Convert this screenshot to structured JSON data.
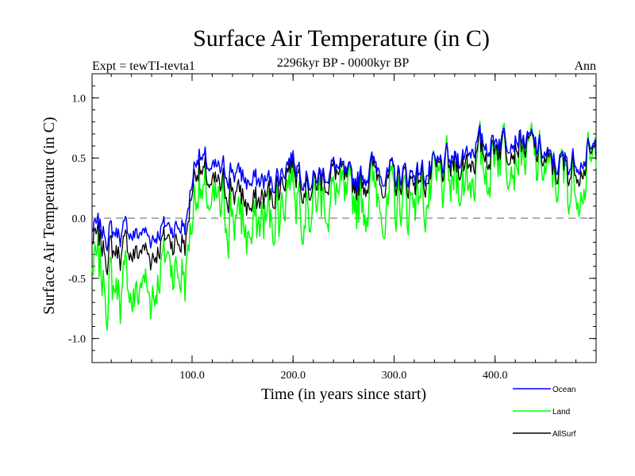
{
  "chart_data": {
    "type": "line",
    "title": "Surface Air Temperature (in C)",
    "subtitle": "2296kyr BP - 0000kyr BP",
    "left_label": "Expt = tewTI-tevta1",
    "right_label": "Ann",
    "xlabel": "Time (in years since start)",
    "ylabel": "Surface Air Temperature (in C)",
    "xlim": [
      1,
      500
    ],
    "ylim": [
      -1.2,
      1.2
    ],
    "x_ticks": [
      100,
      200,
      300,
      400
    ],
    "x_tick_labels": [
      "100.0",
      "200.0",
      "300.0",
      "400.0"
    ],
    "y_ticks": [
      -1.0,
      -0.5,
      0.0,
      0.5,
      1.0
    ],
    "y_tick_labels": [
      "-1.0",
      "-0.5",
      "0.0",
      "0.5",
      "1.0"
    ],
    "reference_line": {
      "y": 0.0,
      "style": "dashed",
      "color": "#808080"
    },
    "legend_position": "bottom-right",
    "series": [
      {
        "name": "Ocean",
        "color": "#0000ff",
        "x": [
          1,
          20,
          40,
          60,
          80,
          95,
          100,
          105,
          120,
          140,
          160,
          180,
          200,
          220,
          240,
          260,
          280,
          300,
          320,
          340,
          360,
          380,
          400,
          420,
          440,
          460,
          480,
          500
        ],
        "values": [
          -0.1,
          -0.1,
          -0.1,
          -0.15,
          -0.05,
          -0.05,
          0.35,
          0.55,
          0.35,
          0.4,
          0.3,
          0.3,
          0.5,
          0.3,
          0.45,
          0.3,
          0.45,
          0.35,
          0.4,
          0.4,
          0.5,
          0.6,
          0.65,
          0.7,
          0.6,
          0.45,
          0.5,
          0.55
        ]
      },
      {
        "name": "Land",
        "color": "#00ff00",
        "x": [
          1,
          20,
          40,
          60,
          80,
          95,
          100,
          105,
          120,
          140,
          160,
          180,
          200,
          220,
          240,
          260,
          280,
          300,
          320,
          340,
          360,
          380,
          400,
          420,
          440,
          460,
          480,
          500
        ],
        "values": [
          -0.45,
          -0.5,
          -0.55,
          -0.6,
          -0.3,
          -0.5,
          0.1,
          0.3,
          -0.05,
          0.05,
          -0.1,
          0.0,
          0.3,
          0.1,
          0.25,
          0.1,
          0.25,
          0.1,
          0.25,
          0.2,
          0.35,
          0.35,
          0.55,
          0.6,
          0.45,
          0.35,
          0.35,
          0.4
        ]
      },
      {
        "name": "AllSurf",
        "color": "#000000",
        "x": [
          1,
          20,
          40,
          60,
          80,
          95,
          100,
          105,
          120,
          140,
          160,
          180,
          200,
          220,
          240,
          260,
          280,
          300,
          320,
          340,
          360,
          380,
          400,
          420,
          440,
          460,
          480,
          500
        ],
        "values": [
          -0.2,
          -0.25,
          -0.25,
          -0.3,
          -0.15,
          -0.2,
          0.3,
          0.45,
          0.2,
          0.25,
          0.1,
          0.2,
          0.45,
          0.25,
          0.4,
          0.25,
          0.4,
          0.3,
          0.35,
          0.35,
          0.45,
          0.5,
          0.6,
          0.65,
          0.55,
          0.4,
          0.45,
          0.5
        ]
      }
    ]
  }
}
